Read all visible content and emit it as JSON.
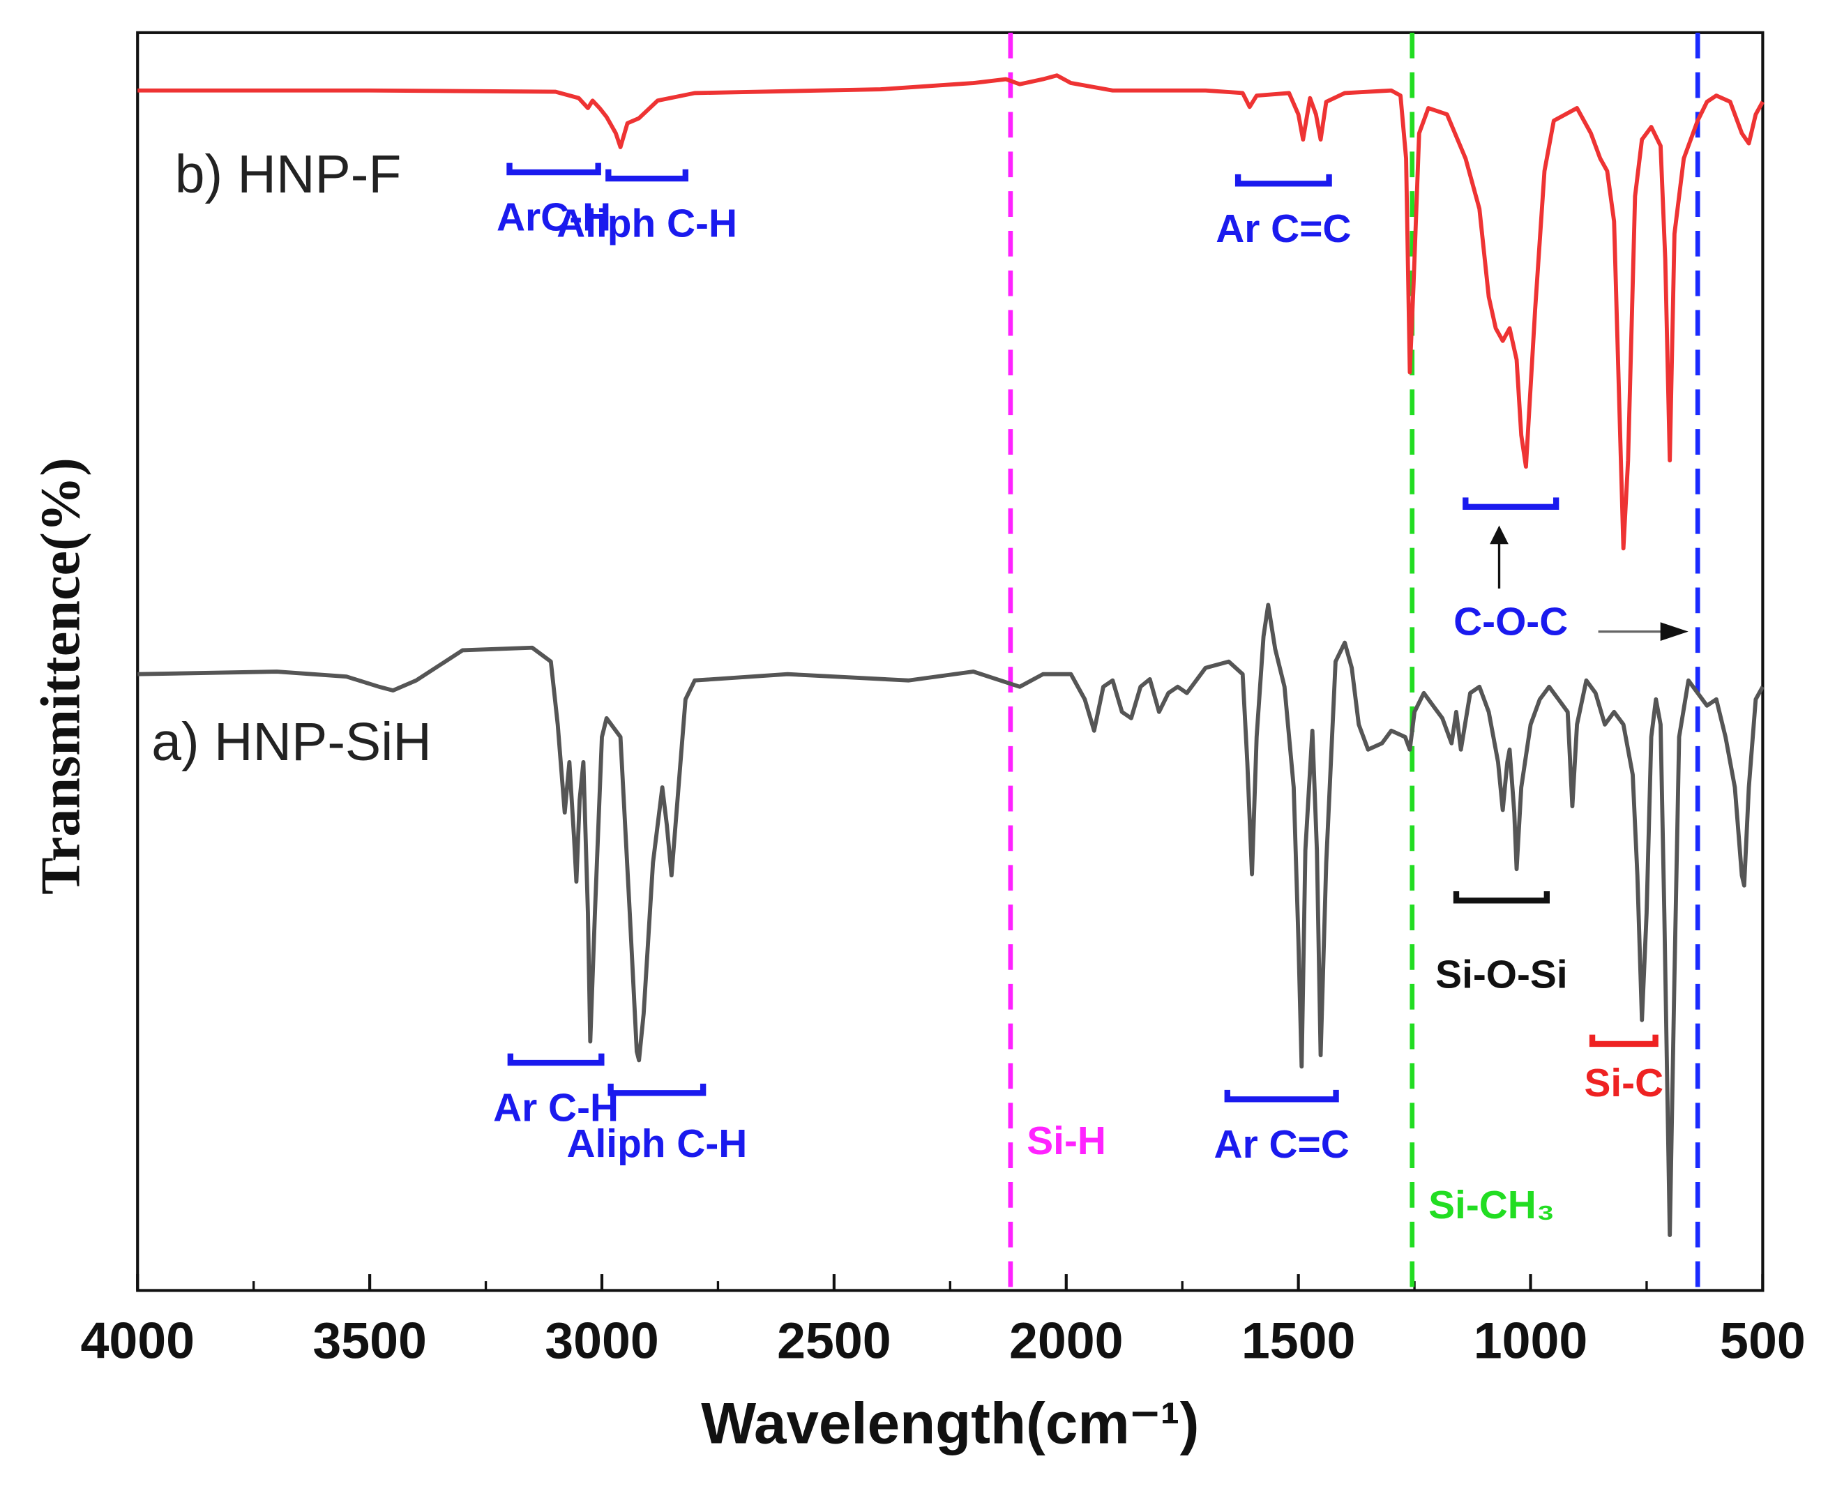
{
  "chart_data": {
    "type": "line",
    "x_label": "Wavelength(cm⁻¹)",
    "y_label": "Transmittence(%)",
    "xlim": [
      4000,
      500
    ],
    "ylim": [
      0,
      100
    ],
    "xticks": [
      4000,
      3500,
      3000,
      2500,
      2000,
      1500,
      1000,
      500
    ],
    "series": [
      {
        "name": "b) HNP-F",
        "color": "#ee3333",
        "x": [
          4000,
          3500,
          3100,
          3050,
          3030,
          3020,
          3005,
          2990,
          2970,
          2960,
          2945,
          2920,
          2880,
          2800,
          2400,
          2200,
          2130,
          2100,
          2050,
          2020,
          1990,
          1900,
          1700,
          1620,
          1605,
          1590,
          1520,
          1500,
          1490,
          1475,
          1462,
          1452,
          1440,
          1400,
          1300,
          1280,
          1268,
          1260,
          1252,
          1240,
          1220,
          1180,
          1140,
          1110,
          1090,
          1075,
          1060,
          1045,
          1030,
          1020,
          1010,
          990,
          970,
          950,
          900,
          870,
          850,
          835,
          820,
          800,
          790,
          775,
          760,
          740,
          720,
          710,
          700,
          690,
          670,
          640,
          620,
          600,
          570,
          545,
          530,
          515,
          500
        ],
        "values": [
          95.4,
          95.4,
          95.3,
          94.8,
          94.0,
          94.6,
          94.0,
          93.3,
          92.0,
          90.9,
          92.8,
          93.2,
          94.6,
          95.2,
          95.5,
          96.0,
          96.3,
          95.9,
          96.3,
          96.6,
          96.0,
          95.4,
          95.4,
          95.2,
          94.1,
          95.0,
          95.2,
          93.5,
          91.5,
          94.8,
          93.5,
          91.5,
          94.5,
          95.2,
          95.4,
          95.0,
          90,
          73.0,
          80,
          92,
          94,
          93.5,
          90,
          86,
          79,
          76.5,
          75.5,
          76.5,
          74,
          68,
          65.5,
          78,
          89,
          93,
          94,
          92,
          90,
          89,
          85,
          59,
          66,
          87,
          91.5,
          92.5,
          91,
          82,
          66,
          84,
          90,
          93,
          94.5,
          95,
          94.5,
          92,
          91.2,
          93.5,
          94.5
        ]
      },
      {
        "name": "a) HNP-SiH",
        "color": "#555555",
        "x": [
          4000,
          3700,
          3550,
          3480,
          3450,
          3400,
          3300,
          3150,
          3110,
          3095,
          3080,
          3070,
          3060,
          3055,
          3048,
          3040,
          3030,
          3025,
          3015,
          3000,
          2990,
          2960,
          2940,
          2925,
          2920,
          2910,
          2890,
          2870,
          2860,
          2850,
          2835,
          2820,
          2800,
          2600,
          2340,
          2200,
          2100,
          2050,
          1990,
          1960,
          1940,
          1920,
          1900,
          1880,
          1860,
          1840,
          1820,
          1800,
          1780,
          1760,
          1740,
          1700,
          1650,
          1620,
          1610,
          1600,
          1590,
          1575,
          1565,
          1550,
          1530,
          1510,
          1500,
          1493,
          1485,
          1470,
          1460,
          1452,
          1440,
          1420,
          1400,
          1385,
          1370,
          1350,
          1320,
          1300,
          1270,
          1260,
          1250,
          1230,
          1210,
          1190,
          1170,
          1160,
          1150,
          1130,
          1110,
          1090,
          1070,
          1060,
          1050,
          1045,
          1035,
          1030,
          1020,
          1000,
          980,
          960,
          940,
          920,
          910,
          900,
          880,
          860,
          840,
          820,
          800,
          780,
          770,
          760,
          750,
          740,
          730,
          720,
          712,
          700,
          690,
          680,
          660,
          640,
          620,
          600,
          580,
          560,
          545,
          540,
          530,
          515,
          500
        ],
        "values": [
          49,
          49.2,
          48.8,
          48.0,
          47.7,
          48.5,
          50.9,
          51.1,
          50.0,
          45,
          38,
          42,
          36,
          32.5,
          39,
          42,
          30,
          19.8,
          30,
          44,
          45.5,
          44,
          30,
          19,
          18.3,
          22,
          34,
          40,
          37,
          33,
          40,
          47,
          48.5,
          49,
          48.5,
          49.2,
          48,
          49,
          49,
          47,
          44.5,
          48,
          48.5,
          46,
          45.5,
          48,
          48.6,
          46,
          47.5,
          48,
          47.5,
          49.5,
          50,
          49,
          42,
          33.1,
          44,
          52,
          54.5,
          51,
          48,
          40,
          28,
          17.8,
          35,
          44.5,
          35,
          18.7,
          34,
          50,
          51.5,
          49.5,
          45,
          43,
          43.5,
          44.5,
          44,
          43,
          46,
          47.5,
          46.5,
          45.5,
          43.5,
          46,
          43,
          47.5,
          48,
          46,
          42,
          38.2,
          42,
          43,
          38,
          33.5,
          40,
          45,
          47,
          48,
          47,
          46,
          38.5,
          45,
          48.5,
          47.5,
          45,
          46,
          45,
          41,
          33,
          21.5,
          30,
          44,
          47,
          45,
          30,
          4.4,
          25,
          44,
          48.5,
          47.5,
          46.5,
          47,
          44,
          40,
          33,
          32.2,
          40,
          47,
          48
        ]
      }
    ],
    "reference_lines": [
      {
        "x": 2120,
        "color": "#ff22ff",
        "label": "Si-H"
      },
      {
        "x": 1255,
        "color": "#22dd22",
        "label": "Si-CH₃"
      },
      {
        "x": 640,
        "color": "#1a2bff"
      }
    ],
    "brackets": [
      {
        "x": [
          3199,
          3008
        ],
        "y": 88.9,
        "color": "#1a1aee",
        "label": "ArC-H"
      },
      {
        "x": [
          2986,
          2820
        ],
        "y": 88.4,
        "color": "#1a1aee",
        "label": "Aliph C-H"
      },
      {
        "x": [
          1630,
          1434
        ],
        "y": 88.0,
        "color": "#1a1aee",
        "label": "Ar C=C"
      },
      {
        "x": [
          1140,
          945
        ],
        "y": 62.3,
        "color": "#1a1aee",
        "label": "C-O-C"
      },
      {
        "x": [
          3197,
          3001
        ],
        "y": 18.1,
        "color": "#1a1aee",
        "label": "Ar C-H"
      },
      {
        "x": [
          2981,
          2782
        ],
        "y": 15.7,
        "color": "#1a1aee",
        "label": "Aliph C-H"
      },
      {
        "x": [
          1653,
          1419
        ],
        "y": 15.2,
        "color": "#1a1aee",
        "label": "Ar C=C"
      },
      {
        "x": [
          1160,
          965
        ],
        "y": 31.0,
        "color": "#111111",
        "label": "Si-O-Si"
      },
      {
        "x": [
          867,
          731
        ],
        "y": 19.6,
        "color": "#ee2222",
        "label": "Si-C"
      }
    ]
  }
}
